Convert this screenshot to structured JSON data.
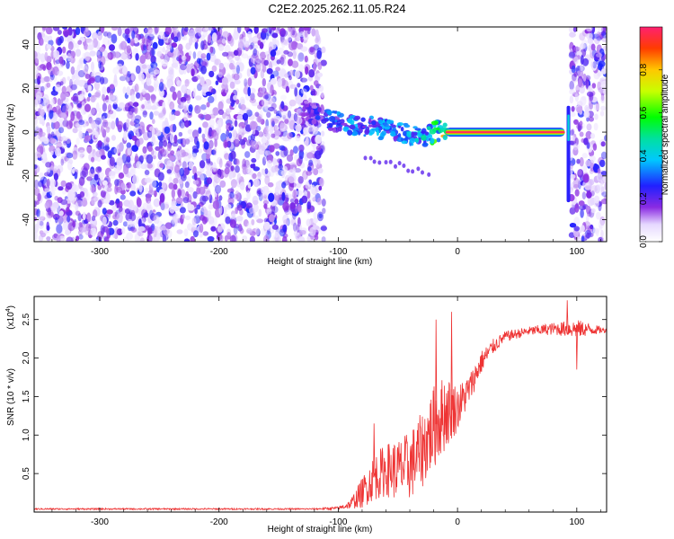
{
  "title": "C2E2.2025.262.11.05.R24",
  "colorbar": {
    "label": "Normalized spectral amplitude",
    "ticks": [
      "0.0",
      "0.2",
      "0.4",
      "0.6",
      "0.8"
    ],
    "tick_values": [
      0,
      0.2,
      0.4,
      0.6,
      0.8
    ]
  },
  "chart_data": [
    {
      "type": "heatmap",
      "xlabel": "Height of straight line (km)",
      "ylabel": "Frequency (Hz)",
      "xlim": [
        -355,
        125
      ],
      "ylim": [
        -50,
        48
      ],
      "x_ticks": [
        -300,
        -200,
        -100,
        0,
        100
      ],
      "x_tick_labels": [
        "-300",
        "-200",
        "-100",
        "0",
        "100"
      ],
      "y_ticks": [
        -40,
        -20,
        0,
        20,
        40
      ],
      "y_tick_labels": [
        "-40",
        "-20",
        "0",
        "20",
        "40"
      ],
      "regions": [
        {
          "name": "noise",
          "x_range": [
            -355,
            -112
          ],
          "y_range": [
            -50,
            48
          ],
          "amplitude": 0.1
        },
        {
          "name": "blank",
          "x_range": [
            -112,
            95
          ],
          "amplitude": 0.0
        },
        {
          "name": "noise",
          "x_range": [
            95,
            125
          ],
          "y_range": [
            -50,
            48
          ],
          "amplitude": 0.1
        }
      ],
      "signal_track": [
        {
          "x": -130,
          "y": 10,
          "amplitude": 0.15
        },
        {
          "x": -110,
          "y": 6,
          "amplitude": 0.3
        },
        {
          "x": -90,
          "y": 4,
          "amplitude": 0.35
        },
        {
          "x": -70,
          "y": 2,
          "amplitude": 0.35
        },
        {
          "x": -50,
          "y": 0,
          "amplitude": 0.35
        },
        {
          "x": -30,
          "y": -2,
          "amplitude": 0.4
        },
        {
          "x": -15,
          "y": 1,
          "amplitude": 0.65
        },
        {
          "x": 0,
          "y": 0,
          "amplitude": 1.0
        },
        {
          "x": 50,
          "y": 0,
          "amplitude": 1.0
        },
        {
          "x": 88,
          "y": 0,
          "amplitude": 0.9
        }
      ]
    },
    {
      "type": "line",
      "xlabel": "Height of straight line (km)",
      "ylabel": "SNR (10 * v/v)",
      "y_scale_label": "(x10",
      "y_scale_exp": "4",
      "xlim": [
        -355,
        125
      ],
      "ylim": [
        0.0,
        2.8
      ],
      "x_ticks": [
        -300,
        -200,
        -100,
        0,
        100
      ],
      "x_tick_labels": [
        "-300",
        "-200",
        "-100",
        "0",
        "100"
      ],
      "y_ticks": [
        0.5,
        1.0,
        1.5,
        2.0,
        2.5
      ],
      "y_tick_labels": [
        "0.5",
        "1.0",
        "1.5",
        "2.0",
        "2.5"
      ],
      "color": "#ee3333",
      "envelope": {
        "x": [
          -355,
          -120,
          -100,
          -90,
          -80,
          -70,
          -60,
          -50,
          -40,
          -30,
          -20,
          -10,
          0,
          10,
          20,
          30,
          40,
          60,
          80,
          100,
          125
        ],
        "y": [
          0.04,
          0.04,
          0.05,
          0.1,
          0.25,
          0.45,
          0.55,
          0.55,
          0.6,
          0.8,
          1.1,
          1.3,
          1.35,
          1.6,
          1.95,
          2.15,
          2.28,
          2.35,
          2.38,
          2.38,
          2.36
        ],
        "amp": [
          0.01,
          0.01,
          0.02,
          0.06,
          0.2,
          0.3,
          0.35,
          0.4,
          0.45,
          0.5,
          0.55,
          0.5,
          0.3,
          0.2,
          0.15,
          0.1,
          0.07,
          0.06,
          0.08,
          0.12,
          0.03
        ]
      },
      "spikes": [
        {
          "x": -18,
          "y": 2.5
        },
        {
          "x": -5,
          "y": 2.6
        },
        {
          "x": -70,
          "y": 1.15
        },
        {
          "x": 92,
          "y": 2.75
        },
        {
          "x": 100,
          "y": 1.85
        }
      ]
    }
  ]
}
